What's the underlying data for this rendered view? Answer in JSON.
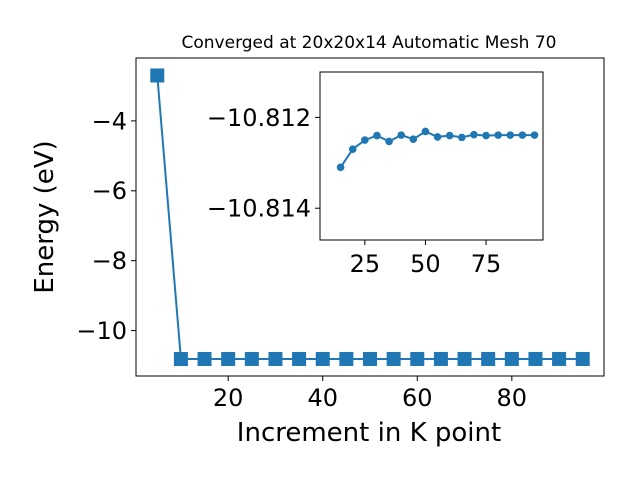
{
  "colors": {
    "series": "#1f77b4",
    "axis": "#000000",
    "background": "#ffffff"
  },
  "chart_data": [
    {
      "type": "line",
      "title": "Converged at 20x20x14 Automatic Mesh 70",
      "xlabel": "Increment in K point",
      "ylabel": "Energy (eV)",
      "xlim": [
        0.5,
        99.5
      ],
      "ylim": [
        -11.3,
        -2.2
      ],
      "xticks": [
        20,
        40,
        60,
        80
      ],
      "xtick_labels": [
        "20",
        "40",
        "60",
        "80"
      ],
      "yticks": [
        -10,
        -8,
        -6,
        -4
      ],
      "ytick_labels": [
        "−10",
        "−8",
        "−6",
        "−4"
      ],
      "marker": "square",
      "grid": false,
      "series": [
        {
          "x": [
            5,
            10,
            15,
            20,
            25,
            30,
            35,
            40,
            45,
            50,
            55,
            60,
            65,
            70,
            75,
            80,
            85,
            90,
            95
          ],
          "y": [
            -2.7,
            -10.8147,
            -10.8131,
            -10.8127,
            -10.8125,
            -10.8124,
            -10.8124,
            -10.8124,
            -10.8124,
            -10.8124,
            -10.8124,
            -10.8124,
            -10.8124,
            -10.8124,
            -10.8124,
            -10.8124,
            -10.8124,
            -10.8124,
            -10.8124
          ]
        }
      ]
    },
    {
      "type": "line",
      "title": "",
      "xlabel": "",
      "ylabel": "",
      "inset": true,
      "xlim": [
        6.5,
        98.5
      ],
      "ylim": [
        -10.8147,
        -10.811
      ],
      "xticks": [
        25,
        50,
        75
      ],
      "xtick_labels": [
        "25",
        "50",
        "75"
      ],
      "yticks": [
        -10.814,
        -10.812
      ],
      "ytick_labels": [
        "−10.814",
        "−10.812"
      ],
      "marker": "circle",
      "grid": false,
      "series": [
        {
          "x": [
            15,
            20,
            25,
            30,
            35,
            40,
            45,
            50,
            55,
            60,
            65,
            70,
            75,
            80,
            85,
            90,
            95
          ],
          "y": [
            -10.8131,
            -10.8127,
            -10.8125,
            -10.8124,
            -10.81253,
            -10.81239,
            -10.81248,
            -10.81231,
            -10.81243,
            -10.8124,
            -10.81244,
            -10.81238,
            -10.8124,
            -10.81239,
            -10.81239,
            -10.81239,
            -10.81239
          ]
        }
      ]
    }
  ]
}
